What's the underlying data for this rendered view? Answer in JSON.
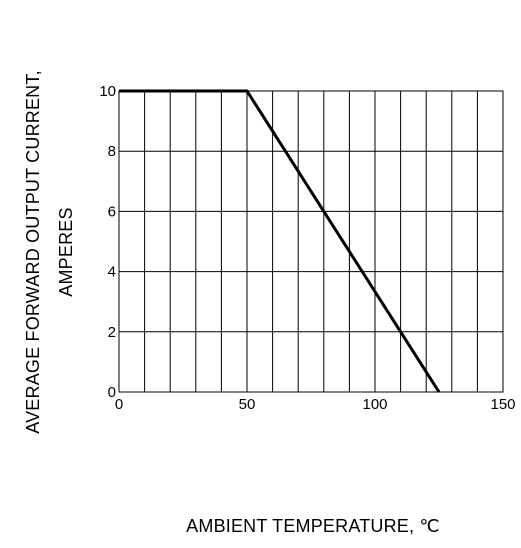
{
  "chart_data": {
    "type": "line",
    "title": "",
    "xlabel": "AMBIENT  TEMPERATURE,  ℃",
    "ylabel_line1": "AVERAGE FORWARD OUTPUT CURRENT,",
    "ylabel_line2": "AMPERES",
    "xlim": [
      0,
      150
    ],
    "ylim": [
      0,
      10
    ],
    "x_ticks": [
      0,
      50,
      100,
      150
    ],
    "y_ticks": [
      0,
      2,
      4,
      6,
      8,
      10
    ],
    "x_tick_labels": [
      "0",
      "50",
      "100",
      "150"
    ],
    "y_tick_labels": [
      "0",
      "2",
      "4",
      "6",
      "8",
      "10"
    ],
    "x_grid_step": 10,
    "y_grid_step": 2,
    "grid": true,
    "legend": "none",
    "series": [
      {
        "x": [
          0,
          50,
          125
        ],
        "y": [
          10,
          10,
          0
        ]
      }
    ],
    "colors": {
      "line": "#000000",
      "grid": "#000000"
    }
  }
}
